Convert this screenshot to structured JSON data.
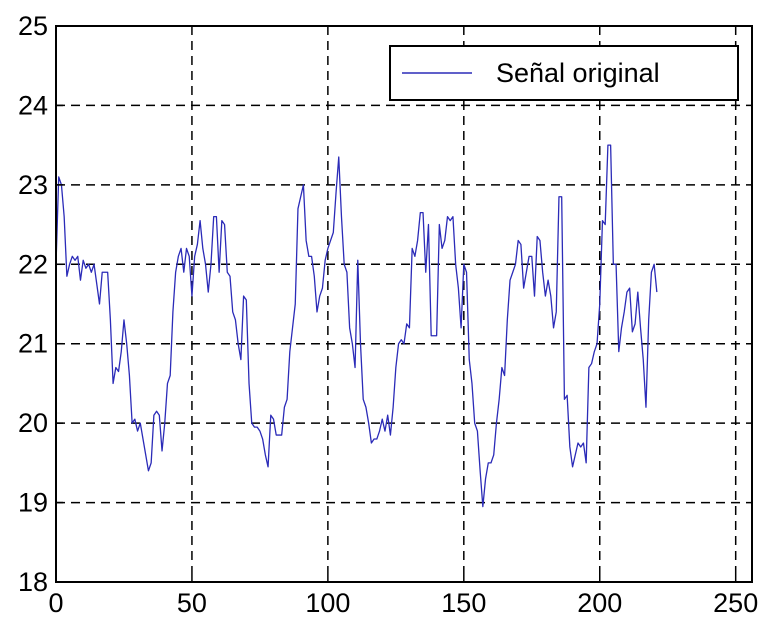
{
  "chart_data": {
    "type": "line",
    "title": "",
    "xlabel": "",
    "ylabel": "",
    "xlim": [
      0,
      256
    ],
    "ylim": [
      18,
      25
    ],
    "xticks": [
      0,
      50,
      100,
      150,
      200,
      250
    ],
    "yticks": [
      18,
      19,
      20,
      21,
      22,
      23,
      24,
      25
    ],
    "grid": true,
    "grid_style": "dashed",
    "legend_position": "top-right",
    "series": [
      {
        "name": "Señal original",
        "color": "#2b2bb8",
        "points": [
          [
            0,
            22.0
          ],
          [
            1,
            23.1
          ],
          [
            2,
            23.0
          ],
          [
            3,
            22.6
          ],
          [
            4,
            21.85
          ],
          [
            5,
            22.0
          ],
          [
            6,
            22.1
          ],
          [
            7,
            22.05
          ],
          [
            8,
            22.1
          ],
          [
            9,
            21.8
          ],
          [
            10,
            22.05
          ],
          [
            11,
            21.95
          ],
          [
            12,
            22.0
          ],
          [
            13,
            21.9
          ],
          [
            14,
            22.0
          ],
          [
            15,
            21.75
          ],
          [
            16,
            21.5
          ],
          [
            17,
            21.9
          ],
          [
            18,
            21.9
          ],
          [
            19,
            21.9
          ],
          [
            20,
            21.3
          ],
          [
            21,
            20.5
          ],
          [
            22,
            20.7
          ],
          [
            23,
            20.65
          ],
          [
            24,
            20.9
          ],
          [
            25,
            21.3
          ],
          [
            26,
            21.0
          ],
          [
            27,
            20.6
          ],
          [
            28,
            20.0
          ],
          [
            29,
            20.05
          ],
          [
            30,
            19.9
          ],
          [
            31,
            20.0
          ],
          [
            32,
            19.8
          ],
          [
            33,
            19.6
          ],
          [
            34,
            19.4
          ],
          [
            35,
            19.5
          ],
          [
            36,
            20.1
          ],
          [
            37,
            20.15
          ],
          [
            38,
            20.1
          ],
          [
            39,
            19.65
          ],
          [
            40,
            20.0
          ],
          [
            41,
            20.5
          ],
          [
            42,
            20.6
          ],
          [
            43,
            21.4
          ],
          [
            44,
            21.9
          ],
          [
            45,
            22.1
          ],
          [
            46,
            22.2
          ],
          [
            47,
            21.9
          ],
          [
            48,
            22.2
          ],
          [
            49,
            22.1
          ],
          [
            50,
            21.6
          ],
          [
            51,
            22.1
          ],
          [
            52,
            22.25
          ],
          [
            53,
            22.55
          ],
          [
            54,
            22.2
          ],
          [
            55,
            22.0
          ],
          [
            56,
            21.65
          ],
          [
            57,
            22.0
          ],
          [
            58,
            22.6
          ],
          [
            59,
            22.6
          ],
          [
            60,
            21.9
          ],
          [
            61,
            22.55
          ],
          [
            62,
            22.5
          ],
          [
            63,
            21.9
          ],
          [
            64,
            21.85
          ],
          [
            65,
            21.4
          ],
          [
            66,
            21.3
          ],
          [
            67,
            21.0
          ],
          [
            68,
            20.8
          ],
          [
            69,
            21.6
          ],
          [
            70,
            21.55
          ],
          [
            71,
            20.5
          ],
          [
            72,
            20.0
          ],
          [
            73,
            19.95
          ],
          [
            74,
            19.95
          ],
          [
            75,
            19.9
          ],
          [
            76,
            19.8
          ],
          [
            77,
            19.6
          ],
          [
            78,
            19.45
          ],
          [
            79,
            20.1
          ],
          [
            80,
            20.05
          ],
          [
            81,
            19.85
          ],
          [
            82,
            19.85
          ],
          [
            83,
            19.85
          ],
          [
            84,
            20.2
          ],
          [
            85,
            20.3
          ],
          [
            86,
            20.9
          ],
          [
            87,
            21.2
          ],
          [
            88,
            21.5
          ],
          [
            89,
            22.7
          ],
          [
            90,
            22.85
          ],
          [
            91,
            23.0
          ],
          [
            92,
            22.3
          ],
          [
            93,
            22.1
          ],
          [
            94,
            22.1
          ],
          [
            95,
            21.85
          ],
          [
            96,
            21.4
          ],
          [
            97,
            21.6
          ],
          [
            98,
            21.7
          ],
          [
            99,
            22.05
          ],
          [
            100,
            22.2
          ],
          [
            101,
            22.3
          ],
          [
            102,
            22.4
          ],
          [
            103,
            22.9
          ],
          [
            104,
            23.35
          ],
          [
            105,
            22.6
          ],
          [
            106,
            22.0
          ],
          [
            107,
            21.9
          ],
          [
            108,
            21.2
          ],
          [
            109,
            21.0
          ],
          [
            110,
            20.7
          ],
          [
            111,
            22.05
          ],
          [
            112,
            21.0
          ],
          [
            113,
            20.3
          ],
          [
            114,
            20.2
          ],
          [
            115,
            20.0
          ],
          [
            116,
            19.75
          ],
          [
            117,
            19.8
          ],
          [
            118,
            19.8
          ],
          [
            119,
            19.9
          ],
          [
            120,
            20.05
          ],
          [
            121,
            19.9
          ],
          [
            122,
            20.1
          ],
          [
            123,
            19.85
          ],
          [
            124,
            20.2
          ],
          [
            125,
            20.7
          ],
          [
            126,
            21.0
          ],
          [
            127,
            21.05
          ],
          [
            128,
            21.0
          ],
          [
            129,
            21.25
          ],
          [
            130,
            21.2
          ],
          [
            131,
            22.2
          ],
          [
            132,
            22.1
          ],
          [
            133,
            22.3
          ],
          [
            134,
            22.65
          ],
          [
            135,
            22.65
          ],
          [
            136,
            21.9
          ],
          [
            137,
            22.5
          ],
          [
            138,
            21.1
          ],
          [
            139,
            21.1
          ],
          [
            140,
            21.1
          ],
          [
            141,
            22.5
          ],
          [
            142,
            22.2
          ],
          [
            143,
            22.3
          ],
          [
            144,
            22.6
          ],
          [
            145,
            22.55
          ],
          [
            146,
            22.6
          ],
          [
            147,
            22.0
          ],
          [
            148,
            21.7
          ],
          [
            149,
            21.2
          ],
          [
            150,
            22.0
          ],
          [
            151,
            21.9
          ],
          [
            152,
            20.8
          ],
          [
            153,
            20.5
          ],
          [
            154,
            20.0
          ],
          [
            155,
            19.9
          ],
          [
            156,
            19.4
          ],
          [
            157,
            18.95
          ],
          [
            158,
            19.3
          ],
          [
            159,
            19.5
          ],
          [
            160,
            19.5
          ],
          [
            161,
            19.6
          ],
          [
            162,
            20.0
          ],
          [
            163,
            20.3
          ],
          [
            164,
            20.7
          ],
          [
            165,
            20.6
          ],
          [
            166,
            21.3
          ],
          [
            167,
            21.8
          ],
          [
            168,
            21.9
          ],
          [
            169,
            22.0
          ],
          [
            170,
            22.3
          ],
          [
            171,
            22.25
          ],
          [
            172,
            21.7
          ],
          [
            173,
            21.9
          ],
          [
            174,
            22.1
          ],
          [
            175,
            22.1
          ],
          [
            176,
            21.6
          ],
          [
            177,
            22.35
          ],
          [
            178,
            22.3
          ],
          [
            179,
            21.9
          ],
          [
            180,
            21.6
          ],
          [
            181,
            21.8
          ],
          [
            182,
            21.6
          ],
          [
            183,
            21.2
          ],
          [
            184,
            21.4
          ],
          [
            185,
            22.85
          ],
          [
            186,
            22.85
          ],
          [
            187,
            20.3
          ],
          [
            188,
            20.35
          ],
          [
            189,
            19.7
          ],
          [
            190,
            19.45
          ],
          [
            191,
            19.6
          ],
          [
            192,
            19.75
          ],
          [
            193,
            19.7
          ],
          [
            194,
            19.75
          ],
          [
            195,
            19.5
          ],
          [
            196,
            20.7
          ],
          [
            197,
            20.75
          ],
          [
            198,
            20.9
          ],
          [
            199,
            21.0
          ],
          [
            200,
            21.5
          ],
          [
            201,
            22.55
          ],
          [
            202,
            22.5
          ],
          [
            203,
            23.5
          ],
          [
            204,
            23.5
          ],
          [
            205,
            22.0
          ],
          [
            206,
            22.0
          ],
          [
            207,
            20.9
          ],
          [
            208,
            21.2
          ],
          [
            209,
            21.4
          ],
          [
            210,
            21.65
          ],
          [
            211,
            21.7
          ],
          [
            212,
            21.15
          ],
          [
            213,
            21.25
          ],
          [
            214,
            21.65
          ],
          [
            215,
            21.2
          ],
          [
            216,
            20.8
          ],
          [
            217,
            20.2
          ],
          [
            218,
            21.3
          ],
          [
            219,
            21.9
          ],
          [
            220,
            22.0
          ],
          [
            221,
            21.65
          ]
        ]
      }
    ]
  }
}
